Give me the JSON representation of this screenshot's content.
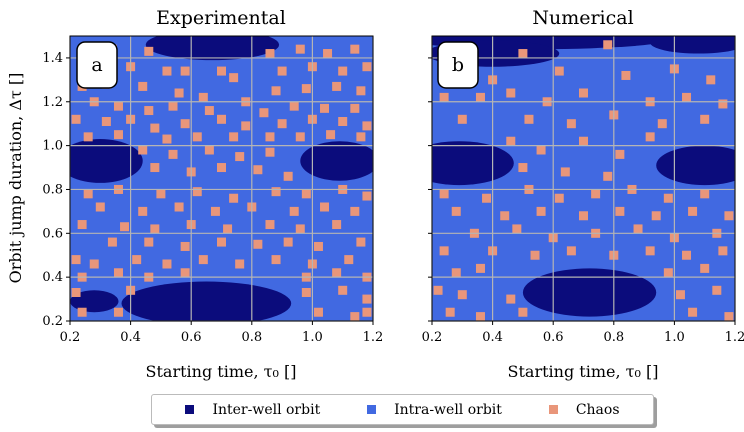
{
  "chart_data": {
    "type": "heatmap",
    "grid": true,
    "colors": {
      "inter_well": "#0b0c7c",
      "intra_well": "#4169e1",
      "chaos": "#e9967a",
      "gridline": "#b5b5b5"
    },
    "legend": {
      "placement": "bottom-center",
      "entries": [
        {
          "label": "Inter-well orbit",
          "color": "#0b0c7c"
        },
        {
          "label": "Intra-well orbit",
          "color": "#4169e1"
        },
        {
          "label": "Chaos",
          "color": "#e9967a"
        }
      ]
    },
    "panels": [
      {
        "title": "Experimental",
        "badge": "a",
        "xlabel": "Starting time, τ₀ []",
        "ylabel": "Orbit jump duration, Δτ []",
        "xlim": [
          0.2,
          1.2
        ],
        "ylim": [
          0.2,
          1.5
        ],
        "xticks": [
          "0.2",
          "0.4",
          "0.6",
          "0.8",
          "1.0",
          "1.2"
        ],
        "yticks": [
          "0.2",
          "0.4",
          "0.6",
          "0.8",
          "1.0",
          "1.2",
          "1.4"
        ],
        "background_class": "intra_well",
        "inter_well_regions": [
          {
            "cx": 0.67,
            "cy": 1.46,
            "rx": 0.22,
            "ry": 0.07
          },
          {
            "cx": 0.3,
            "cy": 0.93,
            "rx": 0.14,
            "ry": 0.1
          },
          {
            "cx": 1.09,
            "cy": 0.93,
            "rx": 0.13,
            "ry": 0.09
          },
          {
            "cx": 0.65,
            "cy": 0.28,
            "rx": 0.28,
            "ry": 0.1
          },
          {
            "cx": 0.28,
            "cy": 0.29,
            "rx": 0.08,
            "ry": 0.05
          }
        ],
        "chaos_cells": [
          [
            0.26,
            1.44
          ],
          [
            0.34,
            1.44
          ],
          [
            0.46,
            1.43
          ],
          [
            0.58,
            1.34
          ],
          [
            0.7,
            1.34
          ],
          [
            0.86,
            1.42
          ],
          [
            0.96,
            1.44
          ],
          [
            1.05,
            1.42
          ],
          [
            1.14,
            1.44
          ],
          [
            0.26,
            1.36
          ],
          [
            0.4,
            1.36
          ],
          [
            0.52,
            1.34
          ],
          [
            0.74,
            1.31
          ],
          [
            0.9,
            1.34
          ],
          [
            1.0,
            1.36
          ],
          [
            1.1,
            1.34
          ],
          [
            1.18,
            1.36
          ],
          [
            0.24,
            1.27
          ],
          [
            0.32,
            1.28
          ],
          [
            0.44,
            1.27
          ],
          [
            0.56,
            1.24
          ],
          [
            0.64,
            1.22
          ],
          [
            0.78,
            1.2
          ],
          [
            0.88,
            1.25
          ],
          [
            0.98,
            1.26
          ],
          [
            1.08,
            1.27
          ],
          [
            1.16,
            1.25
          ],
          [
            0.28,
            1.2
          ],
          [
            0.36,
            1.18
          ],
          [
            0.46,
            1.16
          ],
          [
            0.54,
            1.18
          ],
          [
            0.66,
            1.16
          ],
          [
            0.84,
            1.15
          ],
          [
            0.94,
            1.18
          ],
          [
            1.04,
            1.17
          ],
          [
            1.14,
            1.17
          ],
          [
            0.22,
            1.12
          ],
          [
            0.32,
            1.11
          ],
          [
            0.4,
            1.12
          ],
          [
            0.48,
            1.08
          ],
          [
            0.58,
            1.1
          ],
          [
            0.7,
            1.12
          ],
          [
            0.78,
            1.09
          ],
          [
            0.9,
            1.1
          ],
          [
            1.0,
            1.12
          ],
          [
            1.1,
            1.11
          ],
          [
            1.18,
            1.09
          ],
          [
            0.26,
            1.04
          ],
          [
            0.36,
            1.05
          ],
          [
            0.52,
            1.03
          ],
          [
            0.62,
            1.04
          ],
          [
            0.74,
            1.04
          ],
          [
            0.86,
            1.04
          ],
          [
            0.96,
            1.04
          ],
          [
            1.06,
            1.05
          ],
          [
            1.16,
            1.04
          ],
          [
            0.44,
            0.98
          ],
          [
            0.54,
            0.96
          ],
          [
            0.66,
            0.98
          ],
          [
            0.76,
            0.95
          ],
          [
            0.86,
            0.97
          ],
          [
            0.48,
            0.9
          ],
          [
            0.6,
            0.88
          ],
          [
            0.7,
            0.9
          ],
          [
            0.82,
            0.89
          ],
          [
            0.92,
            0.86
          ],
          [
            0.26,
            0.78
          ],
          [
            0.36,
            0.8
          ],
          [
            0.5,
            0.78
          ],
          [
            0.62,
            0.79
          ],
          [
            0.74,
            0.76
          ],
          [
            0.88,
            0.79
          ],
          [
            0.98,
            0.78
          ],
          [
            1.1,
            0.8
          ],
          [
            1.18,
            0.77
          ],
          [
            0.3,
            0.72
          ],
          [
            0.44,
            0.7
          ],
          [
            0.56,
            0.72
          ],
          [
            0.68,
            0.7
          ],
          [
            0.8,
            0.72
          ],
          [
            0.94,
            0.7
          ],
          [
            1.04,
            0.72
          ],
          [
            1.14,
            0.7
          ],
          [
            0.24,
            0.64
          ],
          [
            0.38,
            0.63
          ],
          [
            0.48,
            0.62
          ],
          [
            0.6,
            0.64
          ],
          [
            0.72,
            0.62
          ],
          [
            0.86,
            0.64
          ],
          [
            0.96,
            0.62
          ],
          [
            1.08,
            0.64
          ],
          [
            0.34,
            0.56
          ],
          [
            0.46,
            0.56
          ],
          [
            0.58,
            0.54
          ],
          [
            0.7,
            0.56
          ],
          [
            0.82,
            0.55
          ],
          [
            0.92,
            0.56
          ],
          [
            1.02,
            0.54
          ],
          [
            1.16,
            0.56
          ],
          [
            0.22,
            0.48
          ],
          [
            0.28,
            0.46
          ],
          [
            0.42,
            0.48
          ],
          [
            0.52,
            0.46
          ],
          [
            0.64,
            0.48
          ],
          [
            0.76,
            0.46
          ],
          [
            0.88,
            0.48
          ],
          [
            1.0,
            0.46
          ],
          [
            1.12,
            0.48
          ],
          [
            0.24,
            0.4
          ],
          [
            0.36,
            0.42
          ],
          [
            0.46,
            0.4
          ],
          [
            0.58,
            0.42
          ],
          [
            0.98,
            0.4
          ],
          [
            1.08,
            0.42
          ],
          [
            1.18,
            0.4
          ],
          [
            0.22,
            0.33
          ],
          [
            0.4,
            0.34
          ],
          [
            0.98,
            0.33
          ],
          [
            1.1,
            0.34
          ],
          [
            1.18,
            0.3
          ],
          [
            0.24,
            0.24
          ],
          [
            0.36,
            0.24
          ],
          [
            1.02,
            0.24
          ],
          [
            1.14,
            0.22
          ],
          [
            1.18,
            0.24
          ]
        ]
      },
      {
        "title": "Numerical",
        "badge": "b",
        "xlabel": "Starting time, τ₀ []",
        "ylabel": "",
        "xlim": [
          0.2,
          1.2
        ],
        "ylim": [
          0.2,
          1.5
        ],
        "xticks": [
          "0.2",
          "0.4",
          "0.6",
          "0.8",
          "1.0",
          "1.2"
        ],
        "yticks": [],
        "background_class": "intra_well",
        "inter_well_regions": [
          {
            "cx": 0.55,
            "cy": 1.49,
            "rx": 0.45,
            "ry": 0.05
          },
          {
            "cx": 0.4,
            "cy": 1.42,
            "rx": 0.22,
            "ry": 0.06
          },
          {
            "cx": 1.08,
            "cy": 1.47,
            "rx": 0.16,
            "ry": 0.05
          },
          {
            "cx": 0.29,
            "cy": 0.92,
            "rx": 0.18,
            "ry": 0.1
          },
          {
            "cx": 1.1,
            "cy": 0.91,
            "rx": 0.16,
            "ry": 0.09
          },
          {
            "cx": 0.72,
            "cy": 0.33,
            "rx": 0.22,
            "ry": 0.11
          }
        ],
        "chaos_cells": [
          [
            0.26,
            1.44
          ],
          [
            0.5,
            1.42
          ],
          [
            0.78,
            1.46
          ],
          [
            0.62,
            1.34
          ],
          [
            0.84,
            1.32
          ],
          [
            1.0,
            1.35
          ],
          [
            1.12,
            1.3
          ],
          [
            0.4,
            1.3
          ],
          [
            0.24,
            1.22
          ],
          [
            0.36,
            1.22
          ],
          [
            0.46,
            1.24
          ],
          [
            0.58,
            1.2
          ],
          [
            0.7,
            1.24
          ],
          [
            0.92,
            1.2
          ],
          [
            1.04,
            1.22
          ],
          [
            1.16,
            1.19
          ],
          [
            0.3,
            1.12
          ],
          [
            0.52,
            1.12
          ],
          [
            0.66,
            1.1
          ],
          [
            0.8,
            1.14
          ],
          [
            0.96,
            1.1
          ],
          [
            1.1,
            1.12
          ],
          [
            0.46,
            1.02
          ],
          [
            0.56,
            0.98
          ],
          [
            0.7,
            1.02
          ],
          [
            0.82,
            0.96
          ],
          [
            0.92,
            1.04
          ],
          [
            0.5,
            0.9
          ],
          [
            0.64,
            0.88
          ],
          [
            0.78,
            0.86
          ],
          [
            0.24,
            0.78
          ],
          [
            0.38,
            0.76
          ],
          [
            0.52,
            0.8
          ],
          [
            0.62,
            0.76
          ],
          [
            0.74,
            0.78
          ],
          [
            0.86,
            0.8
          ],
          [
            0.98,
            0.76
          ],
          [
            1.1,
            0.78
          ],
          [
            0.28,
            0.7
          ],
          [
            0.44,
            0.68
          ],
          [
            0.56,
            0.7
          ],
          [
            0.7,
            0.68
          ],
          [
            0.82,
            0.7
          ],
          [
            0.94,
            0.68
          ],
          [
            1.06,
            0.7
          ],
          [
            1.18,
            0.68
          ],
          [
            0.34,
            0.6
          ],
          [
            0.48,
            0.62
          ],
          [
            0.6,
            0.58
          ],
          [
            0.74,
            0.6
          ],
          [
            0.88,
            0.62
          ],
          [
            1.0,
            0.58
          ],
          [
            1.14,
            0.6
          ],
          [
            0.24,
            0.52
          ],
          [
            0.4,
            0.52
          ],
          [
            0.54,
            0.5
          ],
          [
            0.66,
            0.52
          ],
          [
            0.8,
            0.5
          ],
          [
            0.92,
            0.52
          ],
          [
            1.04,
            0.5
          ],
          [
            1.16,
            0.52
          ],
          [
            0.28,
            0.42
          ],
          [
            0.36,
            0.44
          ],
          [
            0.98,
            0.42
          ],
          [
            1.1,
            0.44
          ],
          [
            0.22,
            0.34
          ],
          [
            0.3,
            0.32
          ],
          [
            0.46,
            0.3
          ],
          [
            1.02,
            0.32
          ],
          [
            1.14,
            0.34
          ],
          [
            0.26,
            0.24
          ],
          [
            0.36,
            0.22
          ],
          [
            0.5,
            0.24
          ],
          [
            1.06,
            0.24
          ],
          [
            1.18,
            0.22
          ]
        ]
      }
    ]
  }
}
